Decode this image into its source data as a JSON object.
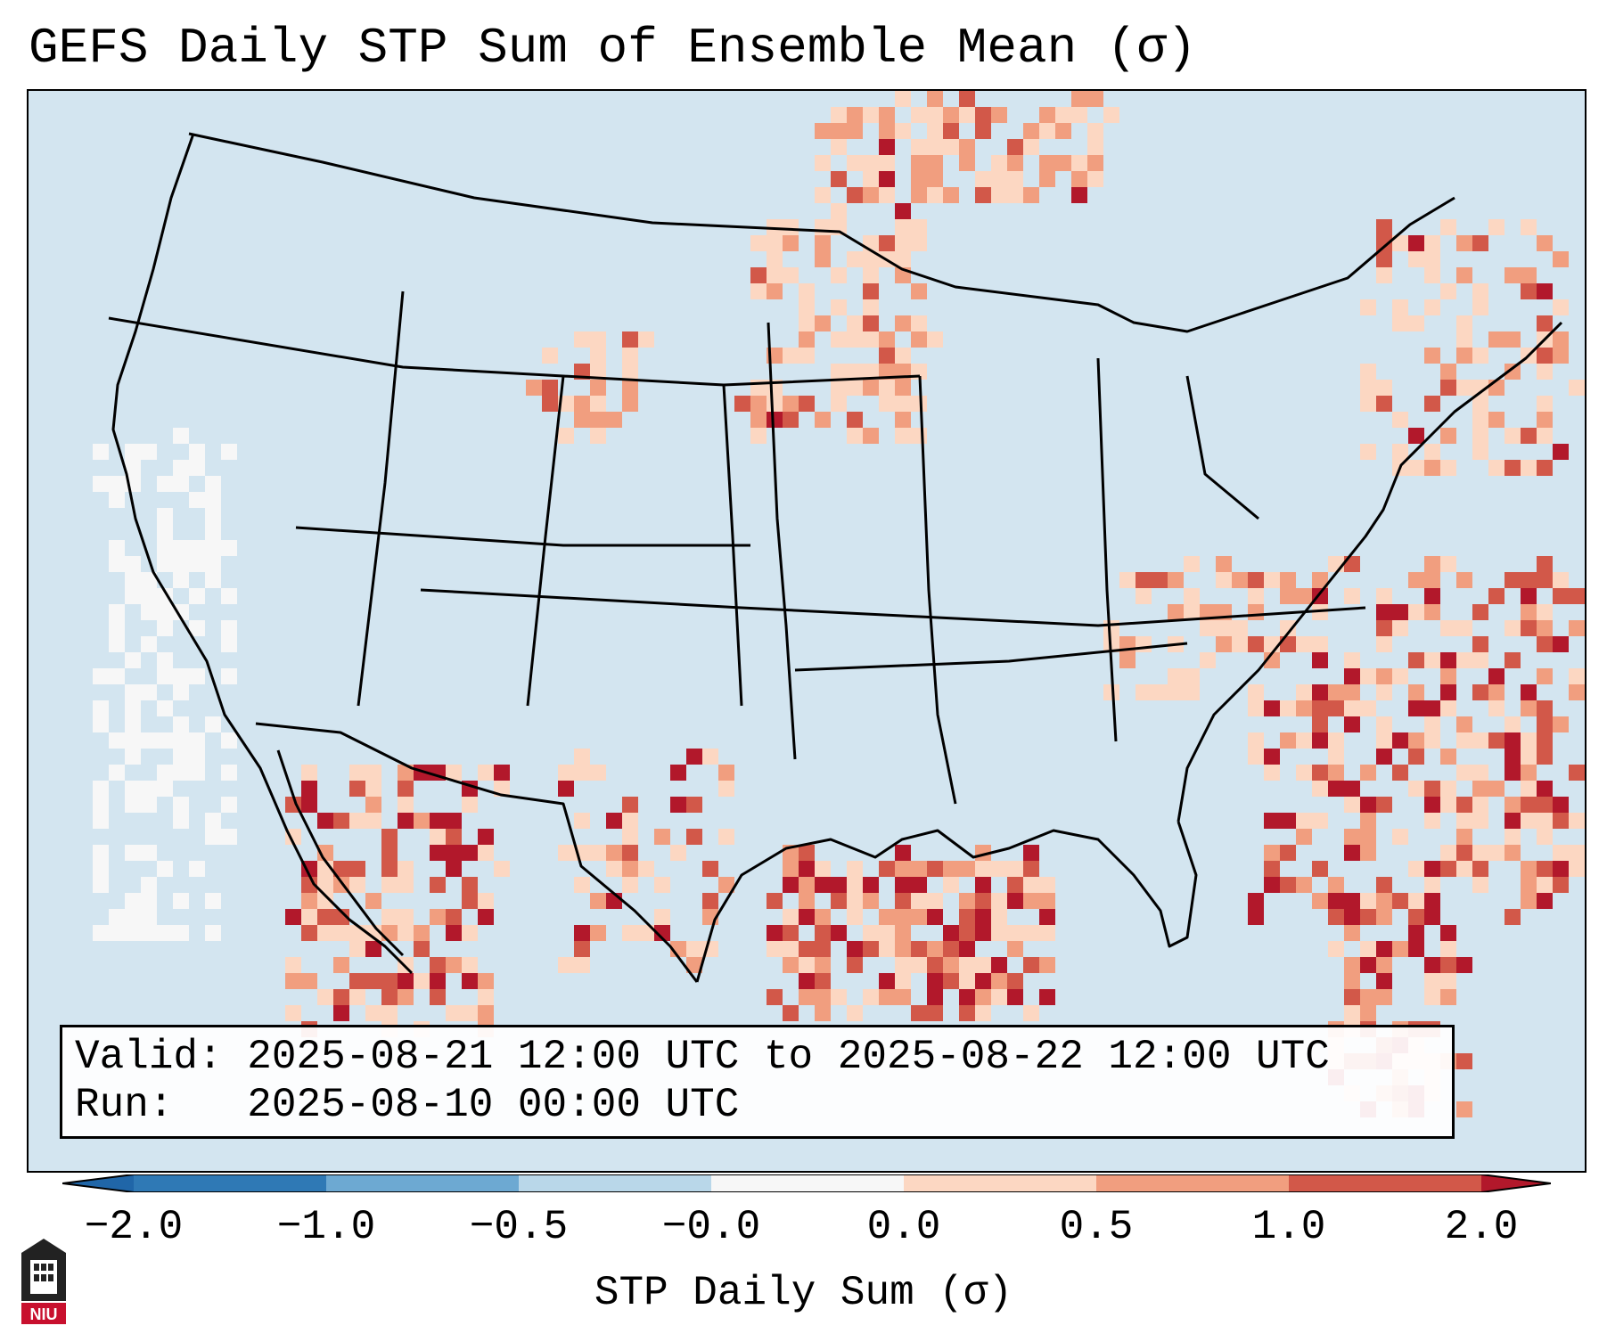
{
  "title": "GEFS Daily STP Sum of Ensemble Mean (σ)",
  "info": {
    "valid_label": "Valid:",
    "valid_value": "2025-08-21 12:00 UTC to 2025-08-22 12:00 UTC",
    "run_label": "Run:",
    "run_value": "2025-08-10 00:00 UTC"
  },
  "colorbar": {
    "label": "STP Daily Sum (σ)",
    "ticks": [
      "−2.0",
      "−1.0",
      "−0.5",
      "−0.0",
      "0.0",
      "0.5",
      "1.0",
      "2.0"
    ],
    "colors": [
      "#2f79b5",
      "#6da9d2",
      "#b9d7e9",
      "#f7f7f7",
      "#fcd7c2",
      "#f19e7f",
      "#d25849",
      "#b2182b"
    ]
  },
  "map": {
    "background_color": "#d3e5f0",
    "region": "Continental United States, Gulf of Mexico, Western Atlantic"
  },
  "logo": {
    "text": "NIU"
  }
}
